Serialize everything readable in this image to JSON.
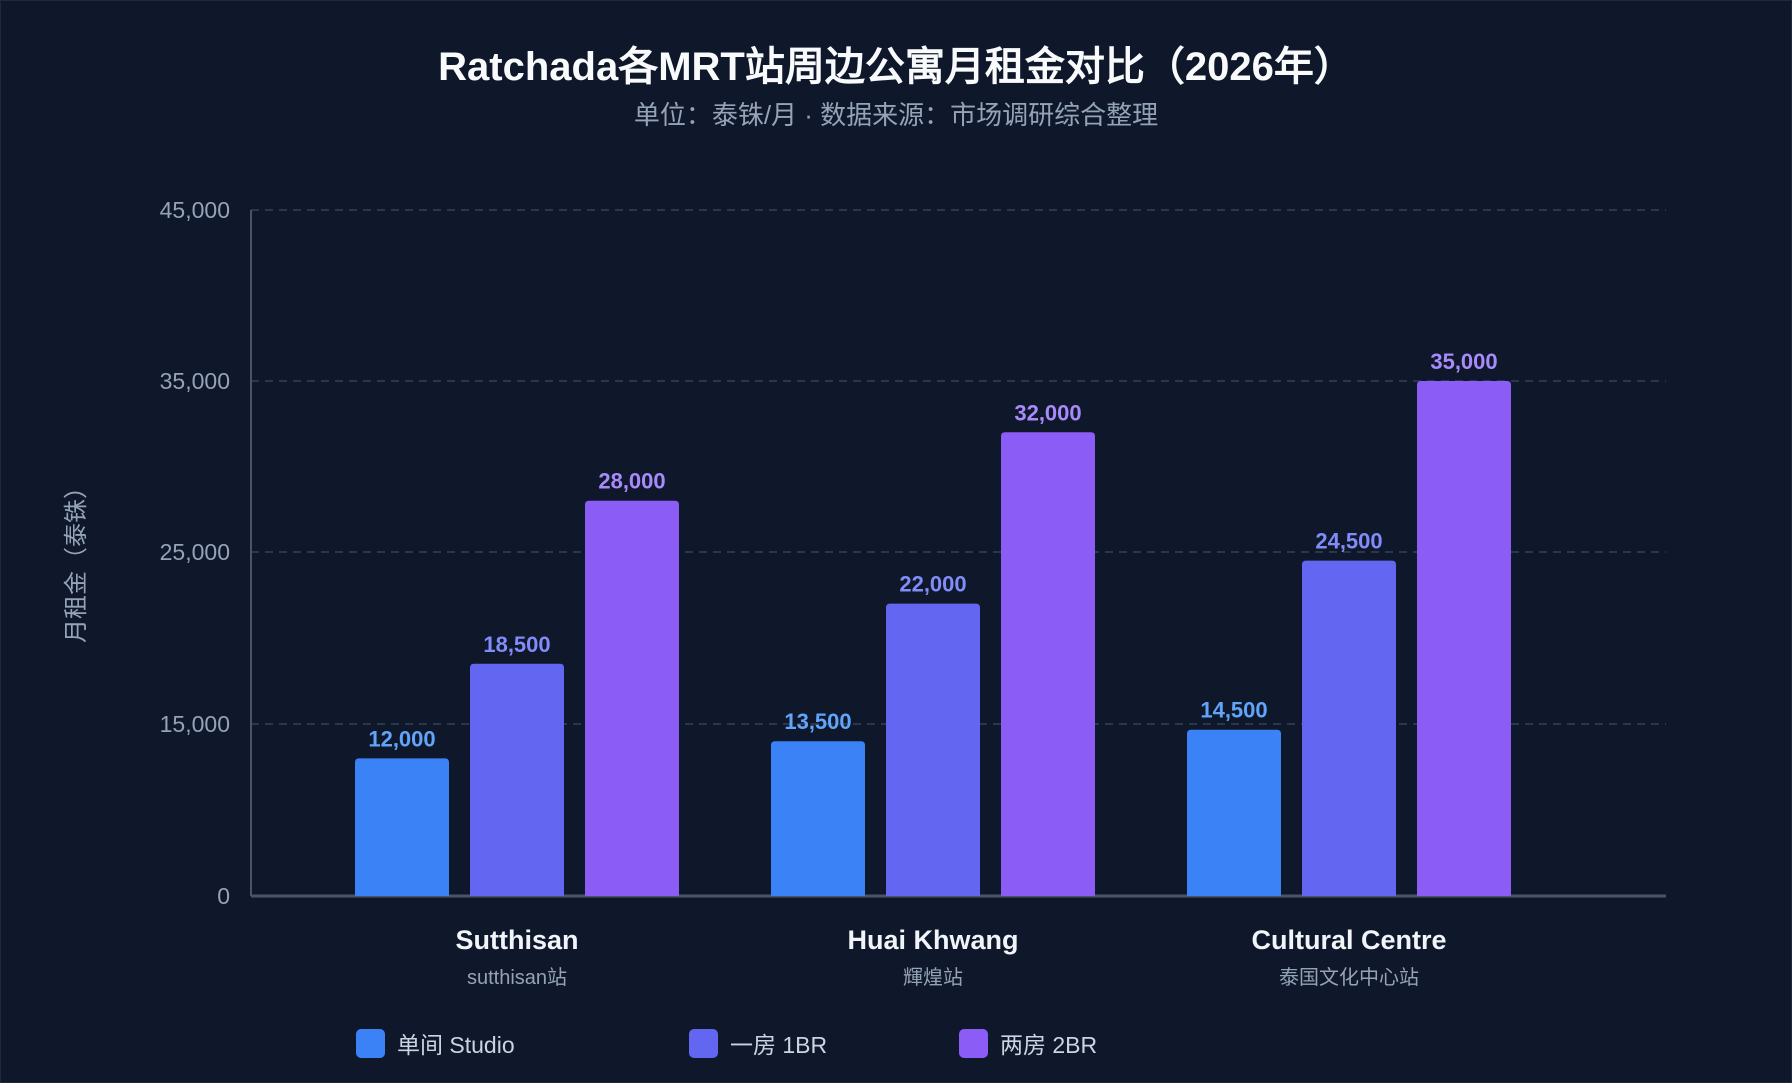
{
  "chart_data": {
    "type": "bar",
    "title": "Ratchada各MRT站周边公寓月租金对比（2026年）",
    "subtitle": "单位：泰铢/月 · 数据来源：市场调研综合整理",
    "ylabel": "月租金（泰铢）",
    "xlabel": "",
    "ylim": [
      0,
      45000
    ],
    "yticks": [
      0,
      15000,
      25000,
      35000,
      45000
    ],
    "ytick_labels": [
      "0",
      "15,000",
      "25,000",
      "35,000",
      "45,000"
    ],
    "grid": true,
    "legend_position": "bottom",
    "categories": [
      "Sutthisan",
      "Huai Khwang",
      "Cultural Centre"
    ],
    "category_sublabels": [
      "sutthisan站",
      "輝煌站",
      "泰国文化中心站"
    ],
    "series": [
      {
        "name": "单间 Studio",
        "color": "#3b82f6",
        "label_color": "#60a5fa",
        "values": [
          12000,
          13500,
          14500
        ],
        "value_labels": [
          "12,000",
          "13,500",
          "14,500"
        ]
      },
      {
        "name": "一房 1BR",
        "color": "#6366f1",
        "label_color": "#818cf8",
        "values": [
          18500,
          22000,
          24500
        ],
        "value_labels": [
          "18,500",
          "22,000",
          "24,500"
        ]
      },
      {
        "name": "两房 2BR",
        "color": "#8b5cf6",
        "label_color": "#a78bfa",
        "values": [
          28000,
          32000,
          35000
        ],
        "value_labels": [
          "28,000",
          "32,000",
          "35,000"
        ]
      }
    ]
  }
}
